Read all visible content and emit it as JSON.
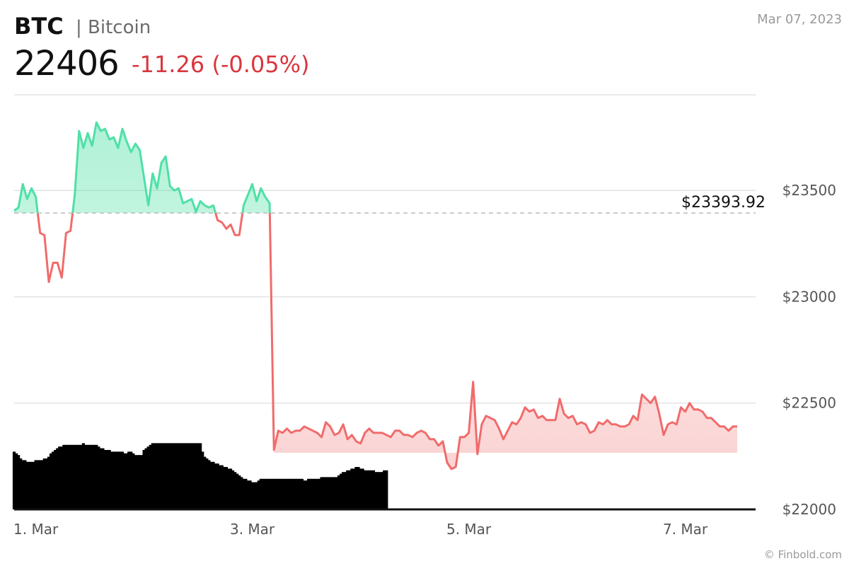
{
  "header": {
    "ticker": "BTC",
    "name": "| Bitcoin",
    "price": "22406",
    "change": "-11.26 (-0.05%)",
    "date": "Mar 07, 2023"
  },
  "footer": {
    "credit": "© Finbold.com"
  },
  "colors": {
    "up": "#4fe0a6",
    "down": "#f16b6b",
    "change_text": "#d9363e",
    "volume": "#000000"
  },
  "chart_data": {
    "type": "line",
    "title": "",
    "xlabel": "",
    "ylabel": "",
    "ylim": [
      22000,
      23950
    ],
    "y_ticks": [
      22000,
      22500,
      23000,
      23500
    ],
    "y_tick_labels": [
      "$22000",
      "$22500",
      "$23000",
      "$23500"
    ],
    "x_ticks": [
      {
        "label": "1. Mar",
        "t": 1.0
      },
      {
        "label": "3. Mar",
        "t": 3.0
      },
      {
        "label": "5. Mar",
        "t": 5.0
      },
      {
        "label": "7. Mar",
        "t": 7.0
      }
    ],
    "x_range": [
      0.8,
      7.65
    ],
    "reference_line": {
      "value": 23393.92,
      "label": "$23393.92",
      "style": "dashed"
    },
    "grid": true,
    "series": [
      {
        "values": [
          [
            0.8,
            23405
          ],
          [
            0.84,
            23420
          ],
          [
            0.88,
            23530
          ],
          [
            0.92,
            23460
          ],
          [
            0.96,
            23510
          ],
          [
            1.0,
            23470
          ],
          [
            1.04,
            23300
          ],
          [
            1.08,
            23290
          ],
          [
            1.12,
            23070
          ],
          [
            1.16,
            23160
          ],
          [
            1.2,
            23160
          ],
          [
            1.24,
            23090
          ],
          [
            1.28,
            23300
          ],
          [
            1.32,
            23310
          ],
          [
            1.36,
            23480
          ],
          [
            1.4,
            23780
          ],
          [
            1.44,
            23700
          ],
          [
            1.48,
            23770
          ],
          [
            1.52,
            23710
          ],
          [
            1.56,
            23820
          ],
          [
            1.6,
            23780
          ],
          [
            1.64,
            23790
          ],
          [
            1.68,
            23740
          ],
          [
            1.72,
            23750
          ],
          [
            1.76,
            23700
          ],
          [
            1.8,
            23790
          ],
          [
            1.84,
            23730
          ],
          [
            1.88,
            23680
          ],
          [
            1.92,
            23720
          ],
          [
            1.96,
            23690
          ],
          [
            2.0,
            23560
          ],
          [
            2.04,
            23430
          ],
          [
            2.08,
            23580
          ],
          [
            2.12,
            23510
          ],
          [
            2.16,
            23630
          ],
          [
            2.2,
            23660
          ],
          [
            2.24,
            23520
          ],
          [
            2.28,
            23500
          ],
          [
            2.32,
            23510
          ],
          [
            2.36,
            23440
          ],
          [
            2.4,
            23450
          ],
          [
            2.44,
            23460
          ],
          [
            2.48,
            23400
          ],
          [
            2.52,
            23450
          ],
          [
            2.56,
            23430
          ],
          [
            2.6,
            23420
          ],
          [
            2.64,
            23430
          ],
          [
            2.68,
            23360
          ],
          [
            2.72,
            23350
          ],
          [
            2.76,
            23320
          ],
          [
            2.8,
            23340
          ],
          [
            2.84,
            23290
          ],
          [
            2.88,
            23290
          ],
          [
            2.92,
            23430
          ],
          [
            2.96,
            23480
          ],
          [
            3.0,
            23530
          ],
          [
            3.04,
            23450
          ],
          [
            3.08,
            23510
          ],
          [
            3.12,
            23470
          ],
          [
            3.16,
            23440
          ],
          [
            3.2,
            22280
          ],
          [
            3.24,
            22370
          ],
          [
            3.28,
            22360
          ],
          [
            3.32,
            22380
          ],
          [
            3.36,
            22360
          ],
          [
            3.4,
            22370
          ],
          [
            3.44,
            22370
          ],
          [
            3.48,
            22390
          ],
          [
            3.52,
            22380
          ],
          [
            3.56,
            22370
          ],
          [
            3.6,
            22360
          ],
          [
            3.64,
            22340
          ],
          [
            3.68,
            22410
          ],
          [
            3.72,
            22390
          ],
          [
            3.76,
            22350
          ],
          [
            3.8,
            22360
          ],
          [
            3.84,
            22400
          ],
          [
            3.88,
            22330
          ],
          [
            3.92,
            22350
          ],
          [
            3.96,
            22320
          ],
          [
            4.0,
            22310
          ],
          [
            4.04,
            22360
          ],
          [
            4.08,
            22380
          ],
          [
            4.12,
            22360
          ],
          [
            4.16,
            22360
          ],
          [
            4.2,
            22360
          ],
          [
            4.24,
            22350
          ],
          [
            4.28,
            22340
          ],
          [
            4.32,
            22370
          ],
          [
            4.36,
            22370
          ],
          [
            4.4,
            22350
          ],
          [
            4.44,
            22350
          ],
          [
            4.48,
            22340
          ],
          [
            4.52,
            22360
          ],
          [
            4.56,
            22370
          ],
          [
            4.6,
            22360
          ],
          [
            4.64,
            22330
          ],
          [
            4.68,
            22330
          ],
          [
            4.72,
            22300
          ],
          [
            4.76,
            22320
          ],
          [
            4.8,
            22220
          ],
          [
            4.84,
            22190
          ],
          [
            4.88,
            22200
          ],
          [
            4.92,
            22340
          ],
          [
            4.96,
            22340
          ],
          [
            5.0,
            22360
          ],
          [
            5.04,
            22600
          ],
          [
            5.08,
            22260
          ],
          [
            5.12,
            22400
          ],
          [
            5.16,
            22440
          ],
          [
            5.2,
            22430
          ],
          [
            5.24,
            22420
          ],
          [
            5.28,
            22380
          ],
          [
            5.32,
            22330
          ],
          [
            5.36,
            22370
          ],
          [
            5.4,
            22410
          ],
          [
            5.44,
            22400
          ],
          [
            5.48,
            22430
          ],
          [
            5.52,
            22480
          ],
          [
            5.56,
            22460
          ],
          [
            5.6,
            22470
          ],
          [
            5.64,
            22430
          ],
          [
            5.68,
            22440
          ],
          [
            5.72,
            22420
          ],
          [
            5.76,
            22420
          ],
          [
            5.8,
            22420
          ],
          [
            5.84,
            22520
          ],
          [
            5.88,
            22450
          ],
          [
            5.92,
            22430
          ],
          [
            5.96,
            22440
          ],
          [
            6.0,
            22400
          ],
          [
            6.04,
            22410
          ],
          [
            6.08,
            22400
          ],
          [
            6.12,
            22360
          ],
          [
            6.16,
            22370
          ],
          [
            6.2,
            22410
          ],
          [
            6.24,
            22400
          ],
          [
            6.28,
            22420
          ],
          [
            6.32,
            22400
          ],
          [
            6.36,
            22400
          ],
          [
            6.4,
            22390
          ],
          [
            6.44,
            22390
          ],
          [
            6.48,
            22400
          ],
          [
            6.52,
            22440
          ],
          [
            6.56,
            22420
          ],
          [
            6.6,
            22540
          ],
          [
            6.64,
            22520
          ],
          [
            6.68,
            22500
          ],
          [
            6.72,
            22530
          ],
          [
            6.76,
            22450
          ],
          [
            6.8,
            22350
          ],
          [
            6.84,
            22400
          ],
          [
            6.88,
            22410
          ],
          [
            6.92,
            22400
          ],
          [
            6.96,
            22480
          ],
          [
            7.0,
            22460
          ],
          [
            7.04,
            22500
          ],
          [
            7.08,
            22470
          ],
          [
            7.12,
            22470
          ],
          [
            7.16,
            22460
          ],
          [
            7.2,
            22430
          ],
          [
            7.24,
            22430
          ],
          [
            7.28,
            22410
          ],
          [
            7.32,
            22390
          ],
          [
            7.36,
            22390
          ],
          [
            7.4,
            22370
          ],
          [
            7.44,
            22390
          ],
          [
            7.48,
            22390
          ]
        ]
      }
    ],
    "volume_bars": [
      [
        0.8,
        0.34
      ],
      [
        0.82,
        0.33
      ],
      [
        0.84,
        0.32
      ],
      [
        0.86,
        0.3
      ],
      [
        0.88,
        0.29
      ],
      [
        0.9,
        0.29
      ],
      [
        0.92,
        0.28
      ],
      [
        0.94,
        0.28
      ],
      [
        0.96,
        0.28
      ],
      [
        0.98,
        0.28
      ],
      [
        1.0,
        0.29
      ],
      [
        1.02,
        0.29
      ],
      [
        1.04,
        0.29
      ],
      [
        1.06,
        0.29
      ],
      [
        1.08,
        0.3
      ],
      [
        1.1,
        0.3
      ],
      [
        1.12,
        0.31
      ],
      [
        1.14,
        0.33
      ],
      [
        1.16,
        0.34
      ],
      [
        1.18,
        0.35
      ],
      [
        1.2,
        0.36
      ],
      [
        1.22,
        0.37
      ],
      [
        1.24,
        0.37
      ],
      [
        1.26,
        0.38
      ],
      [
        1.28,
        0.38
      ],
      [
        1.3,
        0.38
      ],
      [
        1.32,
        0.38
      ],
      [
        1.34,
        0.38
      ],
      [
        1.36,
        0.38
      ],
      [
        1.38,
        0.38
      ],
      [
        1.4,
        0.38
      ],
      [
        1.42,
        0.38
      ],
      [
        1.44,
        0.39
      ],
      [
        1.46,
        0.38
      ],
      [
        1.48,
        0.38
      ],
      [
        1.5,
        0.38
      ],
      [
        1.52,
        0.38
      ],
      [
        1.54,
        0.38
      ],
      [
        1.56,
        0.38
      ],
      [
        1.58,
        0.37
      ],
      [
        1.6,
        0.36
      ],
      [
        1.62,
        0.36
      ],
      [
        1.64,
        0.35
      ],
      [
        1.66,
        0.35
      ],
      [
        1.68,
        0.35
      ],
      [
        1.7,
        0.34
      ],
      [
        1.72,
        0.34
      ],
      [
        1.74,
        0.34
      ],
      [
        1.76,
        0.34
      ],
      [
        1.78,
        0.34
      ],
      [
        1.8,
        0.34
      ],
      [
        1.82,
        0.33
      ],
      [
        1.84,
        0.33
      ],
      [
        1.86,
        0.34
      ],
      [
        1.88,
        0.34
      ],
      [
        1.9,
        0.33
      ],
      [
        1.92,
        0.32
      ],
      [
        1.94,
        0.32
      ],
      [
        1.96,
        0.32
      ],
      [
        1.98,
        0.32
      ],
      [
        2.0,
        0.35
      ],
      [
        2.02,
        0.36
      ],
      [
        2.04,
        0.37
      ],
      [
        2.06,
        0.38
      ],
      [
        2.08,
        0.39
      ],
      [
        2.1,
        0.39
      ],
      [
        2.12,
        0.39
      ],
      [
        2.14,
        0.39
      ],
      [
        2.16,
        0.39
      ],
      [
        2.18,
        0.39
      ],
      [
        2.2,
        0.39
      ],
      [
        2.22,
        0.39
      ],
      [
        2.24,
        0.39
      ],
      [
        2.26,
        0.39
      ],
      [
        2.28,
        0.39
      ],
      [
        2.3,
        0.39
      ],
      [
        2.32,
        0.39
      ],
      [
        2.34,
        0.39
      ],
      [
        2.36,
        0.39
      ],
      [
        2.38,
        0.39
      ],
      [
        2.4,
        0.39
      ],
      [
        2.42,
        0.39
      ],
      [
        2.44,
        0.39
      ],
      [
        2.46,
        0.39
      ],
      [
        2.48,
        0.39
      ],
      [
        2.5,
        0.39
      ],
      [
        2.52,
        0.39
      ],
      [
        2.54,
        0.34
      ],
      [
        2.56,
        0.31
      ],
      [
        2.58,
        0.3
      ],
      [
        2.6,
        0.29
      ],
      [
        2.62,
        0.28
      ],
      [
        2.64,
        0.28
      ],
      [
        2.66,
        0.27
      ],
      [
        2.68,
        0.27
      ],
      [
        2.7,
        0.26
      ],
      [
        2.72,
        0.26
      ],
      [
        2.74,
        0.25
      ],
      [
        2.76,
        0.25
      ],
      [
        2.78,
        0.24
      ],
      [
        2.8,
        0.24
      ],
      [
        2.82,
        0.23
      ],
      [
        2.84,
        0.22
      ],
      [
        2.86,
        0.21
      ],
      [
        2.88,
        0.2
      ],
      [
        2.9,
        0.19
      ],
      [
        2.92,
        0.18
      ],
      [
        2.94,
        0.18
      ],
      [
        2.96,
        0.17
      ],
      [
        2.98,
        0.17
      ],
      [
        3.0,
        0.16
      ],
      [
        3.02,
        0.16
      ],
      [
        3.04,
        0.16
      ],
      [
        3.06,
        0.17
      ],
      [
        3.08,
        0.18
      ],
      [
        3.1,
        0.18
      ],
      [
        3.12,
        0.18
      ],
      [
        3.14,
        0.18
      ],
      [
        3.16,
        0.18
      ],
      [
        3.18,
        0.18
      ],
      [
        3.2,
        0.18
      ],
      [
        3.22,
        0.18
      ],
      [
        3.24,
        0.18
      ],
      [
        3.26,
        0.18
      ],
      [
        3.28,
        0.18
      ],
      [
        3.3,
        0.18
      ],
      [
        3.32,
        0.18
      ],
      [
        3.34,
        0.18
      ],
      [
        3.36,
        0.18
      ],
      [
        3.38,
        0.18
      ],
      [
        3.4,
        0.18
      ],
      [
        3.42,
        0.18
      ],
      [
        3.44,
        0.18
      ],
      [
        3.46,
        0.18
      ],
      [
        3.48,
        0.17
      ],
      [
        3.5,
        0.17
      ],
      [
        3.52,
        0.18
      ],
      [
        3.54,
        0.18
      ],
      [
        3.56,
        0.18
      ],
      [
        3.58,
        0.18
      ],
      [
        3.6,
        0.18
      ],
      [
        3.62,
        0.18
      ],
      [
        3.64,
        0.19
      ],
      [
        3.66,
        0.19
      ],
      [
        3.68,
        0.19
      ],
      [
        3.7,
        0.19
      ],
      [
        3.72,
        0.19
      ],
      [
        3.74,
        0.19
      ],
      [
        3.76,
        0.19
      ],
      [
        3.78,
        0.19
      ],
      [
        3.8,
        0.2
      ],
      [
        3.82,
        0.21
      ],
      [
        3.84,
        0.22
      ],
      [
        3.86,
        0.22
      ],
      [
        3.88,
        0.23
      ],
      [
        3.9,
        0.23
      ],
      [
        3.92,
        0.24
      ],
      [
        3.94,
        0.24
      ],
      [
        3.96,
        0.25
      ],
      [
        3.98,
        0.25
      ],
      [
        4.0,
        0.24
      ],
      [
        4.02,
        0.24
      ],
      [
        4.04,
        0.23
      ],
      [
        4.06,
        0.23
      ],
      [
        4.08,
        0.23
      ],
      [
        4.1,
        0.23
      ],
      [
        4.12,
        0.23
      ],
      [
        4.14,
        0.22
      ],
      [
        4.16,
        0.22
      ],
      [
        4.18,
        0.22
      ],
      [
        4.2,
        0.22
      ],
      [
        4.22,
        0.23
      ],
      [
        4.24,
        0.23
      ]
    ]
  }
}
